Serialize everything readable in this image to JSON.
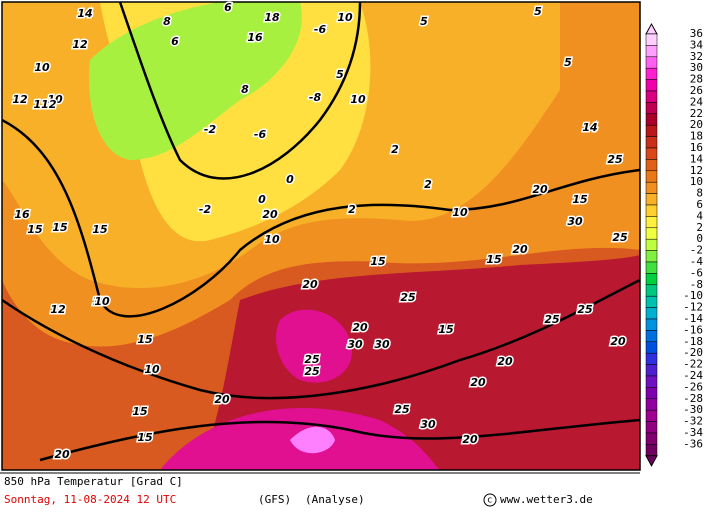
{
  "map": {
    "contour_labels": [
      "14",
      "12",
      "10",
      "10",
      "12",
      "112",
      "15",
      "15",
      "15",
      "10",
      "12",
      "16",
      "15",
      "10",
      "15",
      "20",
      "20",
      "20",
      "25",
      "25",
      "30",
      "30",
      "20",
      "25",
      "30",
      "20",
      "20",
      "20",
      "25",
      "25",
      "20",
      "15",
      "15",
      "10",
      "10",
      "10",
      "10",
      "5",
      "5",
      "5",
      "5",
      "2",
      "2",
      "2",
      "0",
      "0",
      "-2",
      "-2",
      "-6",
      "-6",
      "-8",
      "8",
      "8",
      "6",
      "6",
      "18",
      "16",
      "14",
      "15",
      "25",
      "20",
      "20",
      "25",
      "30",
      "15",
      "10",
      "15",
      "20",
      "25"
    ],
    "colorbar": {
      "levels": [
        36,
        34,
        32,
        30,
        28,
        26,
        24,
        22,
        20,
        18,
        16,
        14,
        12,
        10,
        8,
        6,
        4,
        2,
        0,
        -2,
        -4,
        -6,
        -8,
        -10,
        -12,
        -14,
        -16,
        -18,
        -20,
        -22,
        -24,
        -26,
        -28,
        -30,
        -32,
        -34,
        -36
      ],
      "colors": [
        "#ffd0ff",
        "#ffa0ff",
        "#ff60f0",
        "#ff20d0",
        "#f000a8",
        "#d80080",
        "#c00050",
        "#a80028",
        "#b81818",
        "#c83018",
        "#d84818",
        "#e06018",
        "#e87818",
        "#f09020",
        "#f8b028",
        "#ffd030",
        "#fff040",
        "#f0ff40",
        "#c0ff40",
        "#80f040",
        "#40e040",
        "#00d040",
        "#00c880",
        "#00c0b0",
        "#00b0d0",
        "#0090e0",
        "#0070e0",
        "#0050e0",
        "#3030e0",
        "#5020d0",
        "#7010c0",
        "#8000b0",
        "#9000a0",
        "#a00090",
        "#900080",
        "#800070",
        "#700060"
      ]
    },
    "footer": {
      "title": "850 hPa Temperatur [Grad C]",
      "date": "Sonntag, 11-08-2024  12 UTC",
      "model": "(GFS)",
      "run": "(Analyse)",
      "site": "www.wetter3.de"
    }
  }
}
